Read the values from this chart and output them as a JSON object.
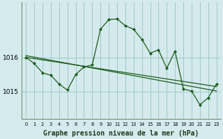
{
  "title": "Graphe pression niveau de la mer (hPa)",
  "background_color": "#d4eaec",
  "plot_bg_color": "#d4eaec",
  "grid_color": "#a0c8cc",
  "line_color": "#1a5c1a",
  "marker_color": "#1a5c1a",
  "ylim": [
    1014.2,
    1017.6
  ],
  "yticks": [
    1015,
    1016
  ],
  "xlim": [
    -0.5,
    23.5
  ],
  "xticks": [
    0,
    1,
    2,
    3,
    4,
    5,
    6,
    7,
    8,
    9,
    10,
    11,
    12,
    13,
    14,
    15,
    16,
    17,
    18,
    19,
    20,
    21,
    22,
    23
  ],
  "regression1": [
    1016.05,
    1015.02
  ],
  "regression2": [
    1016.0,
    1015.15
  ],
  "main_series": [
    1016.0,
    1015.82,
    1015.55,
    1015.48,
    1015.22,
    1015.05,
    1015.5,
    1015.72,
    1015.78,
    1016.82,
    1017.1,
    1017.12,
    1016.92,
    1016.82,
    1016.52,
    1016.12,
    1016.22,
    1015.68,
    1016.18,
    1015.08,
    1015.02,
    1014.62,
    1014.82,
    1015.22
  ],
  "xlabel_fontsize": 6.5,
  "ylabel_fontsize": 6.5,
  "title_fontsize": 7.0
}
